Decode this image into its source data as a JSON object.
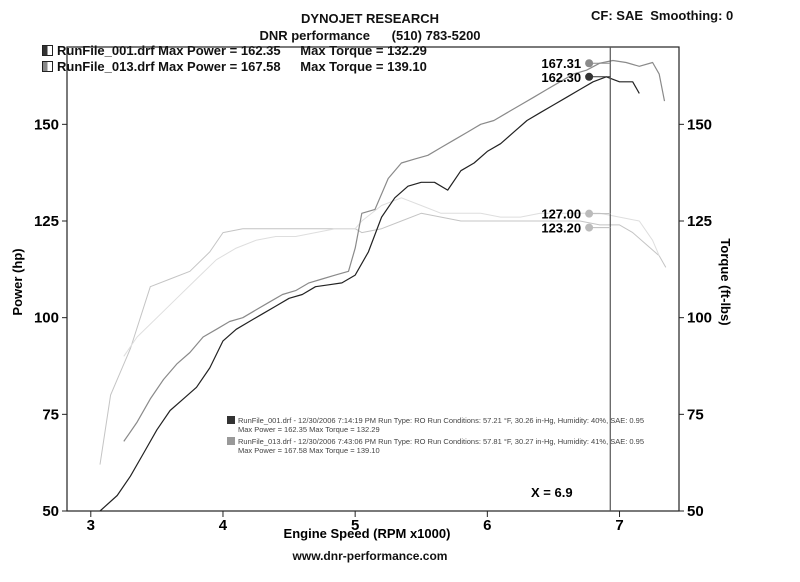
{
  "header": {
    "title": "DYNOJET RESEARCH",
    "subtitle": "DNR performance      (510) 783-5200",
    "cf": "CF: SAE  Smoothing: 0"
  },
  "legend": [
    {
      "file": "RunFile_001.drf",
      "max_power_text": "Max Power = 162.35",
      "max_torque_text": "Max Torque = 132.29",
      "color": "#222222"
    },
    {
      "file": "RunFile_013.drf",
      "max_power_text": "Max Power = 167.58",
      "max_torque_text": "Max Torque = 139.10",
      "color": "#8a8a8a"
    }
  ],
  "run_info": [
    {
      "line1": "RunFile_001.drf - 12/30/2006 7:14:19 PM  Run Type: RO  Run Conditions: 57.21 °F, 30.26 in-Hg,  Humidity: 40%, SAE: 0.95",
      "line2": "Max Power = 162.35  Max Torque = 132.29"
    },
    {
      "line1": "RunFile_013.drf - 12/30/2006 7:43:06 PM  Run Type: RO  Run Conditions: 57.81 °F, 30.27 in-Hg,  Humidity: 41%, SAE: 0.95",
      "line2": "Max Power = 167.58  Max Torque = 139.10"
    }
  ],
  "cursor": {
    "label": "X = 6.9",
    "x": 6.93
  },
  "footer": "www.dnr-performance.com",
  "chart_data": {
    "type": "line",
    "xlabel": "Engine Speed (RPM x1000)",
    "ylabel": "Power (hp)",
    "y2label": "Torque (ft-lbs)",
    "xlim": [
      2.82,
      7.45
    ],
    "ylim": [
      50,
      170
    ],
    "y2lim": [
      50,
      170
    ],
    "xticks": [
      3,
      4,
      5,
      6,
      7
    ],
    "yticks": [
      50,
      75,
      100,
      125,
      150
    ],
    "y2ticks": [
      50,
      75,
      100,
      125,
      150
    ],
    "grid": false,
    "cursor_values": [
      {
        "text": "167.31",
        "y": 165.8,
        "color": "#8a8a8a"
      },
      {
        "text": "162.30",
        "y": 162.3,
        "color": "#333333"
      },
      {
        "text": "127.00",
        "y": 126.9,
        "color": "#bbbbbb"
      },
      {
        "text": "123.20",
        "y": 123.3,
        "color": "#bbbbbb"
      }
    ],
    "series": [
      {
        "name": "RunFile_001.drf",
        "quantity": "power",
        "color": "#222222",
        "width": 1.2,
        "x": [
          3.07,
          3.2,
          3.3,
          3.4,
          3.5,
          3.6,
          3.7,
          3.8,
          3.9,
          4.0,
          4.1,
          4.2,
          4.3,
          4.4,
          4.5,
          4.6,
          4.7,
          4.8,
          4.9,
          5.0,
          5.1,
          5.2,
          5.3,
          5.4,
          5.5,
          5.6,
          5.7,
          5.8,
          5.9,
          6.0,
          6.1,
          6.2,
          6.3,
          6.4,
          6.5,
          6.6,
          6.7,
          6.8,
          6.9,
          7.0,
          7.1,
          7.15
        ],
        "y": [
          50,
          54,
          59,
          65,
          71,
          76,
          79,
          82,
          87,
          94,
          97,
          99,
          101,
          103,
          105,
          106,
          108,
          108.5,
          109,
          111,
          117,
          126,
          131,
          134,
          135,
          135,
          133,
          138,
          140,
          143,
          145,
          148,
          151,
          153,
          155,
          157,
          159,
          161,
          162.3,
          161,
          161,
          158
        ]
      },
      {
        "name": "RunFile_013.drf",
        "quantity": "power",
        "color": "#8a8a8a",
        "width": 1.2,
        "x": [
          3.25,
          3.35,
          3.45,
          3.55,
          3.65,
          3.75,
          3.85,
          3.95,
          4.05,
          4.15,
          4.25,
          4.35,
          4.45,
          4.55,
          4.65,
          4.75,
          4.85,
          4.95,
          5.0,
          5.05,
          5.15,
          5.25,
          5.35,
          5.45,
          5.55,
          5.65,
          5.75,
          5.85,
          5.95,
          6.05,
          6.15,
          6.25,
          6.35,
          6.45,
          6.55,
          6.65,
          6.75,
          6.85,
          6.95,
          7.05,
          7.15,
          7.25,
          7.3,
          7.34
        ],
        "y": [
          68,
          73,
          79,
          84,
          88,
          91,
          95,
          97,
          99,
          100,
          102,
          104,
          106,
          107,
          109,
          110,
          111,
          112,
          118,
          127,
          128,
          136,
          140,
          141,
          142,
          144,
          146,
          148,
          150,
          151,
          153,
          155,
          157,
          159,
          161,
          163,
          164,
          165.8,
          166.5,
          166,
          165,
          166,
          163,
          156
        ]
      },
      {
        "name": "RunFile_001.drf",
        "quantity": "torque",
        "color": "#c4c4c4",
        "width": 1.0,
        "x": [
          3.07,
          3.15,
          3.3,
          3.45,
          3.6,
          3.75,
          3.9,
          4.0,
          4.15,
          4.3,
          4.45,
          4.6,
          4.75,
          4.9,
          5.0,
          5.05,
          5.2,
          5.35,
          5.5,
          5.65,
          5.8,
          5.95,
          6.1,
          6.25,
          6.4,
          6.55,
          6.7,
          6.85,
          7.0,
          7.1,
          7.2,
          7.3,
          7.35
        ],
        "y": [
          62,
          80,
          92,
          108,
          110,
          112,
          117,
          122,
          123,
          123,
          123,
          123,
          123,
          123,
          123,
          122,
          123,
          125,
          127,
          126,
          125,
          125,
          125,
          125,
          125,
          125,
          125,
          124,
          124,
          122,
          119,
          116,
          113
        ]
      },
      {
        "name": "RunFile_013.drf",
        "quantity": "torque",
        "color": "#dedede",
        "width": 1.0,
        "x": [
          3.25,
          3.35,
          3.5,
          3.65,
          3.8,
          3.95,
          4.1,
          4.25,
          4.4,
          4.55,
          4.7,
          4.85,
          5.0,
          5.05,
          5.2,
          5.35,
          5.5,
          5.65,
          5.8,
          5.95,
          6.1,
          6.25,
          6.4,
          6.55,
          6.7,
          6.85,
          7.0,
          7.15,
          7.25,
          7.3
        ],
        "y": [
          90,
          95,
          100,
          105,
          110,
          115,
          118,
          120,
          121,
          121,
          122,
          123,
          123,
          125,
          129,
          131,
          129,
          127,
          127,
          127,
          126,
          126,
          127,
          127,
          127,
          127,
          126,
          125,
          120,
          116
        ]
      }
    ]
  }
}
